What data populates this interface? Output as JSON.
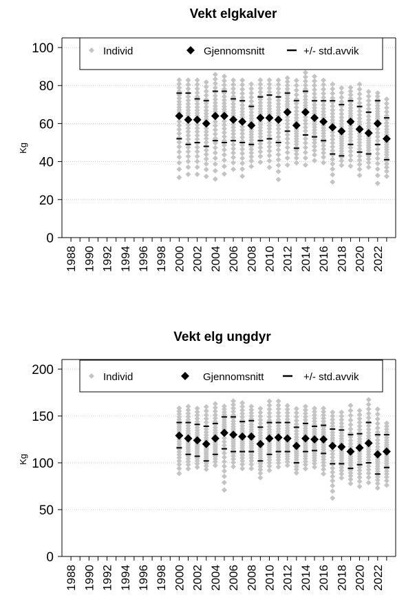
{
  "colors": {
    "individual": "#c4c4c4",
    "mean": "#000000",
    "std": "#000000",
    "grid": "#cccccc"
  },
  "chart_data": [
    {
      "type": "scatter",
      "title": "Vekt elgkalver",
      "ylabel": "Kg",
      "xlabel": "",
      "ylim": [
        0,
        100
      ],
      "yticks": [
        0,
        20,
        40,
        60,
        80,
        100
      ],
      "xlim": [
        1987,
        2024
      ],
      "xticks": [
        1988,
        1990,
        1992,
        1994,
        1996,
        1998,
        2000,
        2002,
        2004,
        2006,
        2008,
        2010,
        2012,
        2014,
        2016,
        2018,
        2020,
        2022
      ],
      "grid": "horizontal dotted",
      "legend": {
        "placement": "top",
        "entries": [
          "Individ",
          "Gjennomsnitt",
          "+/- std.avvik"
        ]
      },
      "series": [
        {
          "name": "Gjennomsnitt",
          "x": [
            2000,
            2001,
            2002,
            2003,
            2004,
            2005,
            2006,
            2007,
            2008,
            2009,
            2010,
            2011,
            2012,
            2013,
            2014,
            2015,
            2016,
            2017,
            2018,
            2019,
            2020,
            2021,
            2022,
            2023
          ],
          "y": [
            64,
            62,
            62,
            60,
            64,
            64,
            62,
            61,
            59,
            63,
            63,
            62,
            66,
            59,
            66,
            63,
            61,
            58,
            56,
            61,
            57,
            55,
            60,
            52
          ]
        },
        {
          "name": "+/- std.avvik",
          "x": [
            2000,
            2001,
            2002,
            2003,
            2004,
            2005,
            2006,
            2007,
            2008,
            2009,
            2010,
            2011,
            2012,
            2013,
            2014,
            2015,
            2016,
            2017,
            2018,
            2019,
            2020,
            2021,
            2022,
            2023
          ],
          "upper": [
            76,
            76,
            73,
            72,
            77,
            77,
            73,
            72,
            69,
            74,
            75,
            74,
            76,
            72,
            77,
            72,
            72,
            72,
            70,
            72,
            69,
            66,
            72,
            63
          ],
          "lower": [
            52,
            49,
            50,
            48,
            51,
            50,
            51,
            50,
            49,
            51,
            52,
            50,
            56,
            47,
            54,
            53,
            51,
            44,
            43,
            49,
            45,
            44,
            49,
            41
          ]
        },
        {
          "name": "Individ",
          "x": [
            2000,
            2001,
            2002,
            2003,
            2004,
            2005,
            2006,
            2007,
            2008,
            2009,
            2010,
            2011,
            2012,
            2013,
            2014,
            2015,
            2016,
            2017,
            2018,
            2019,
            2020,
            2021,
            2022,
            2023
          ],
          "min": [
            28,
            30,
            30,
            29,
            27,
            30,
            33,
            29,
            35,
            37,
            34,
            27,
            35,
            37,
            35,
            38,
            37,
            26,
            36,
            35,
            30,
            35,
            25,
            30
          ],
          "max": [
            84,
            84,
            84,
            83,
            87,
            86,
            84,
            84,
            82,
            84,
            84,
            84,
            85,
            84,
            88,
            86,
            84,
            82,
            80,
            80,
            82,
            78,
            77,
            74
          ]
        }
      ]
    },
    {
      "type": "scatter",
      "title": "Vekt elg ungdyr",
      "ylabel": "Kg",
      "xlabel": "",
      "ylim": [
        0,
        200
      ],
      "yticks": [
        0,
        50,
        100,
        150,
        200
      ],
      "xlim": [
        1987,
        2024
      ],
      "xticks": [
        1988,
        1990,
        1992,
        1994,
        1996,
        1998,
        2000,
        2002,
        2004,
        2006,
        2008,
        2010,
        2012,
        2014,
        2016,
        2018,
        2020,
        2022
      ],
      "grid": "horizontal dotted",
      "legend": {
        "placement": "top",
        "entries": [
          "Individ",
          "Gjennomsnitt",
          "+/- std.avvik"
        ]
      },
      "series": [
        {
          "name": "Gjennomsnitt",
          "x": [
            2000,
            2001,
            2002,
            2003,
            2004,
            2005,
            2006,
            2007,
            2008,
            2009,
            2010,
            2011,
            2012,
            2013,
            2014,
            2015,
            2016,
            2017,
            2018,
            2019,
            2020,
            2021,
            2022,
            2023
          ],
          "y": [
            129,
            126,
            124,
            120,
            126,
            132,
            130,
            128,
            128,
            120,
            126,
            127,
            126,
            118,
            126,
            125,
            125,
            118,
            117,
            112,
            116,
            121,
            109,
            112
          ]
        },
        {
          "name": "+/- std.avvik",
          "x": [
            2000,
            2001,
            2002,
            2003,
            2004,
            2005,
            2006,
            2007,
            2008,
            2009,
            2010,
            2011,
            2012,
            2013,
            2014,
            2015,
            2016,
            2017,
            2018,
            2019,
            2020,
            2021,
            2022,
            2023
          ],
          "upper": [
            143,
            143,
            141,
            139,
            142,
            149,
            149,
            144,
            145,
            138,
            143,
            143,
            143,
            138,
            142,
            139,
            140,
            136,
            135,
            130,
            131,
            143,
            130,
            130
          ],
          "lower": [
            116,
            109,
            107,
            102,
            109,
            115,
            112,
            112,
            112,
            102,
            109,
            112,
            112,
            100,
            112,
            113,
            110,
            99,
            99,
            94,
            98,
            100,
            88,
            95
          ]
        },
        {
          "name": "Individ",
          "x": [
            2000,
            2001,
            2002,
            2003,
            2004,
            2005,
            2006,
            2007,
            2008,
            2009,
            2010,
            2011,
            2012,
            2013,
            2014,
            2015,
            2016,
            2017,
            2018,
            2019,
            2020,
            2021,
            2022,
            2023
          ],
          "min": [
            84,
            90,
            92,
            90,
            94,
            64,
            92,
            90,
            90,
            80,
            88,
            92,
            94,
            86,
            90,
            92,
            84,
            56,
            80,
            74,
            70,
            74,
            69,
            72
          ],
          "max": [
            160,
            162,
            160,
            162,
            165,
            162,
            168,
            166,
            162,
            160,
            168,
            168,
            163,
            160,
            162,
            160,
            160,
            156,
            156,
            164,
            158,
            170,
            160,
            144
          ]
        }
      ]
    }
  ]
}
